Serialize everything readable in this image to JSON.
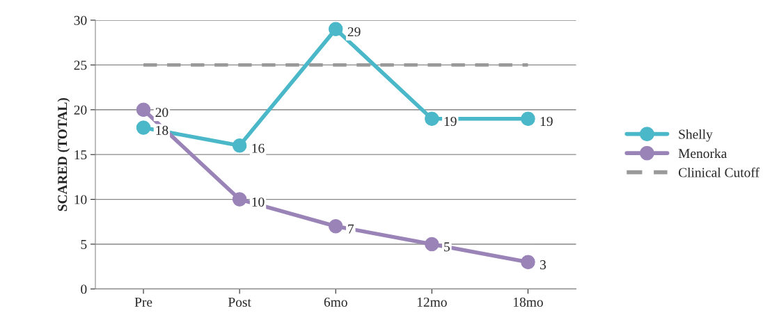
{
  "chart_data": {
    "type": "line",
    "ylabel": "SCARED (TOTAL)",
    "categories": [
      "Pre",
      "Post",
      "6mo",
      "12mo",
      "18mo"
    ],
    "series": [
      {
        "name": "Shelly",
        "color": "#4bb8c9",
        "values": [
          18,
          16,
          29,
          19,
          19
        ],
        "marker": "circle",
        "line_style": "solid",
        "value_labels": [
          "18",
          "16",
          "29",
          "19",
          "19"
        ]
      },
      {
        "name": "Menorka",
        "color": "#9a83b7",
        "values": [
          20,
          10,
          7,
          5,
          3
        ],
        "marker": "circle",
        "line_style": "solid",
        "value_labels": [
          "20",
          "10",
          "7",
          "5",
          "3"
        ]
      },
      {
        "name": "Clinical Cutoff",
        "color": "#999999",
        "values": [
          25,
          25,
          25,
          25,
          25
        ],
        "marker": "none",
        "line_style": "dashed"
      }
    ],
    "ylim": [
      0,
      30
    ],
    "yticks": [
      0,
      5,
      10,
      15,
      20,
      25,
      30
    ],
    "grid": "y",
    "legend": "right"
  }
}
